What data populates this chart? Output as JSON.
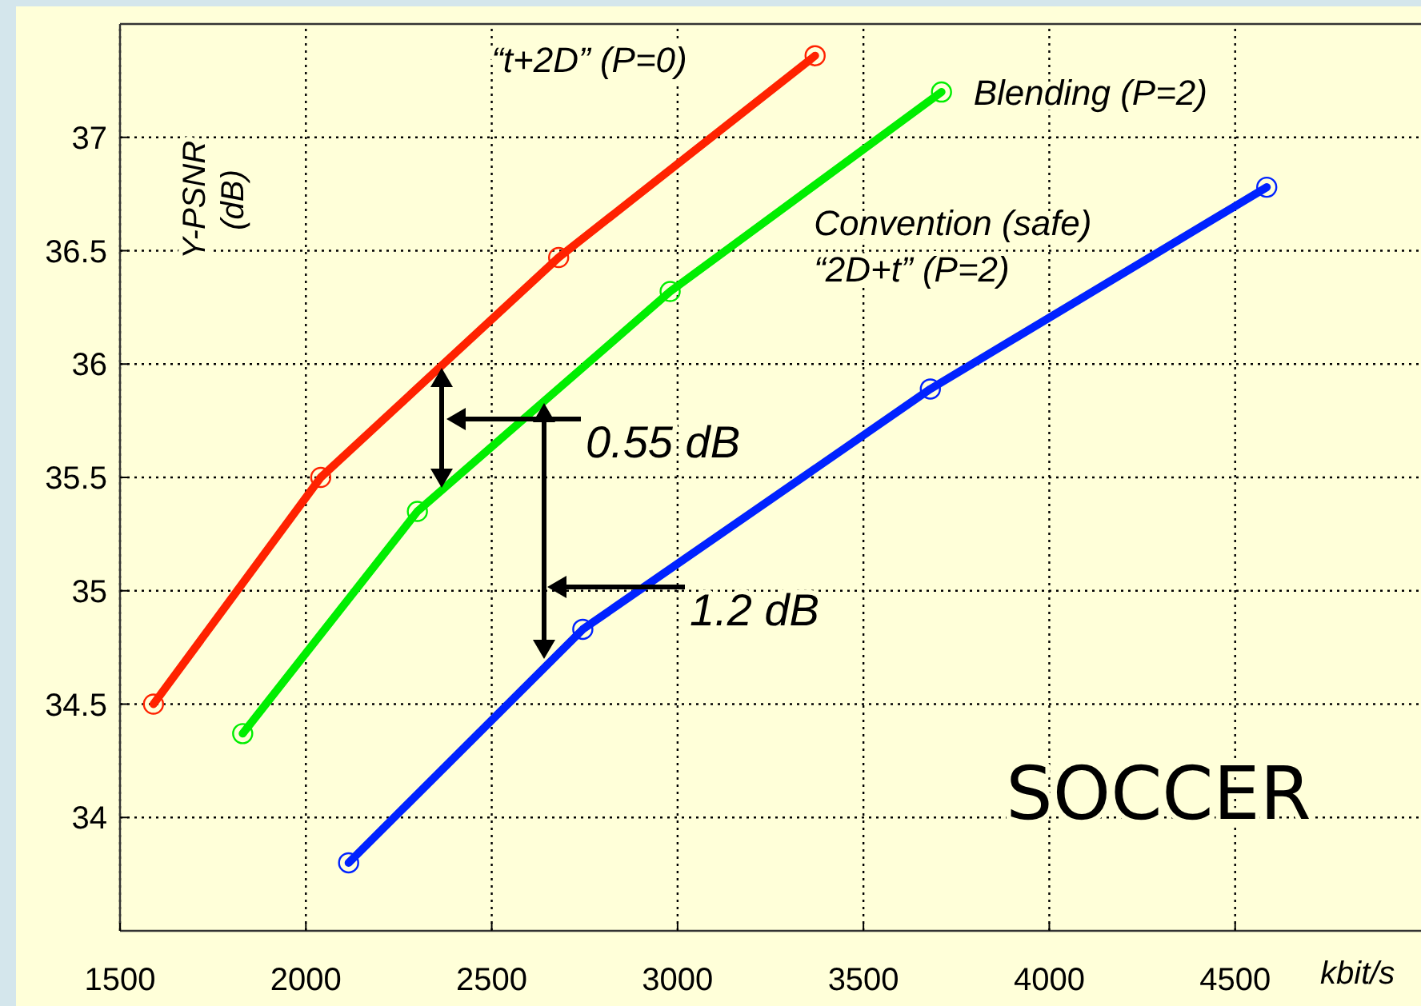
{
  "chart_data": {
    "type": "line",
    "xlabel": "kbit/s",
    "ylabel": "Y-PSNR (dB)",
    "xlim": [
      1500,
      5000
    ],
    "ylim": [
      33.5,
      37.5
    ],
    "xticks": [
      1500,
      2000,
      2500,
      3000,
      3500,
      4000,
      4500
    ],
    "yticks": [
      34,
      34.5,
      35,
      35.5,
      36,
      36.5,
      37
    ],
    "grid": true,
    "marker": "circle",
    "line_style": "solid",
    "legend": false,
    "series": [
      {
        "name": "“t+2D” (P=0)",
        "color": "#ff2200",
        "x": [
          1590,
          2040,
          2680,
          3370
        ],
        "values": [
          34.5,
          35.5,
          36.47,
          37.36
        ]
      },
      {
        "name": "Blending (P=2)",
        "color": "#00ee00",
        "x": [
          1830,
          2300,
          2980,
          3710
        ],
        "values": [
          34.37,
          35.35,
          36.32,
          37.2
        ]
      },
      {
        "name": "Convention (safe)\n“2D+t” (P=2)",
        "color": "#0022ff",
        "x": [
          2115,
          2745,
          3680,
          4585
        ],
        "values": [
          33.8,
          34.83,
          35.89,
          36.78
        ]
      }
    ],
    "annotations": [
      "0.55 dB",
      "1.2 dB",
      "SOCCER"
    ]
  }
}
